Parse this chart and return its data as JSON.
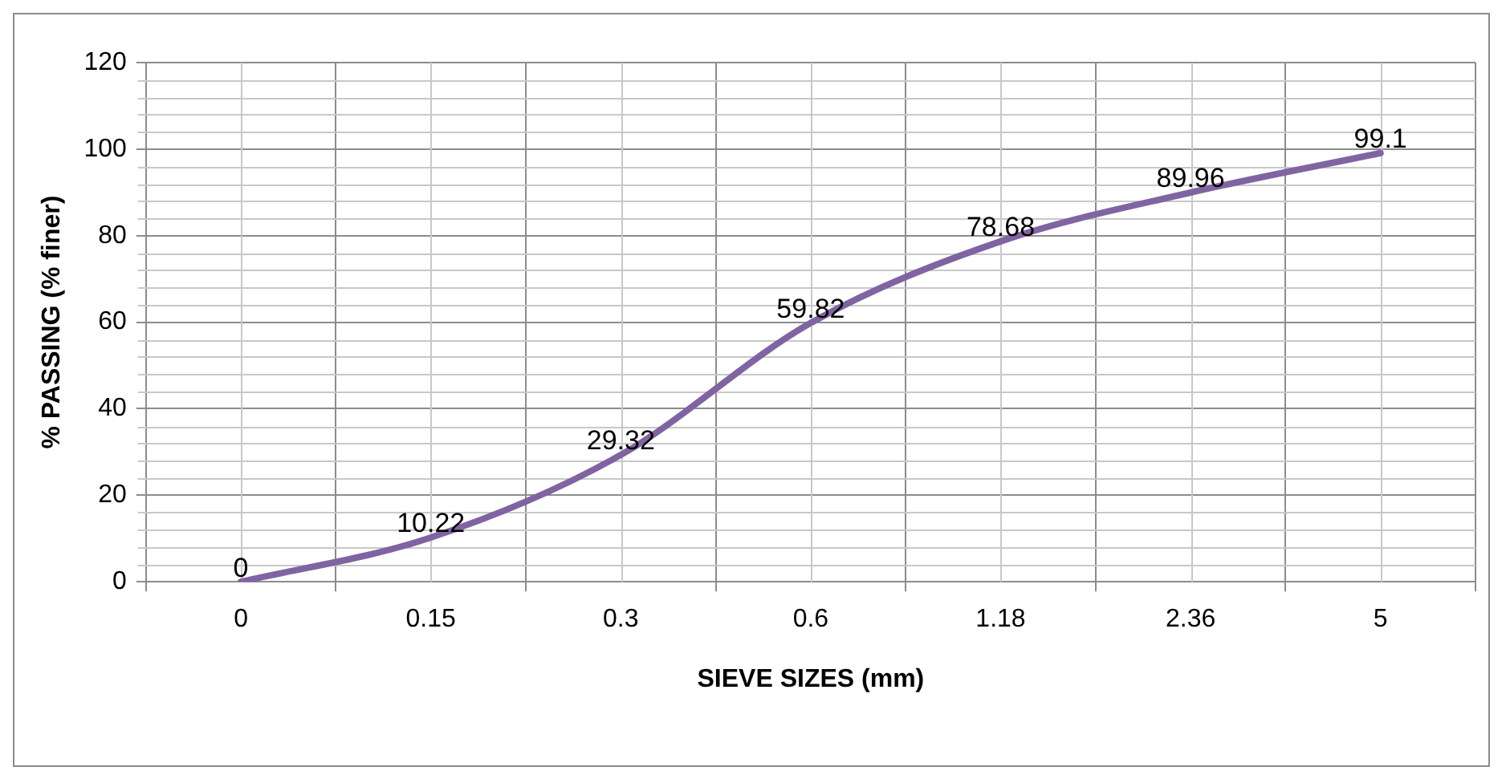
{
  "chart_data": {
    "type": "line",
    "xlabel": "SIEVE SIZES (mm)",
    "ylabel": "% PASSING (% finer)",
    "categories": [
      "0",
      "0.15",
      "0.3",
      "0.6",
      "1.18",
      "2.36",
      "5"
    ],
    "series": [
      {
        "color": "#8064a2",
        "values": [
          0,
          10.22,
          29.32,
          59.82,
          78.68,
          89.96,
          99.1
        ]
      }
    ],
    "ylim": [
      0,
      120
    ],
    "yticks": [
      0,
      20,
      40,
      60,
      80,
      100,
      120
    ],
    "grid": true,
    "legend": false,
    "marker": "none",
    "line_style": "solid",
    "data_labels": true
  }
}
